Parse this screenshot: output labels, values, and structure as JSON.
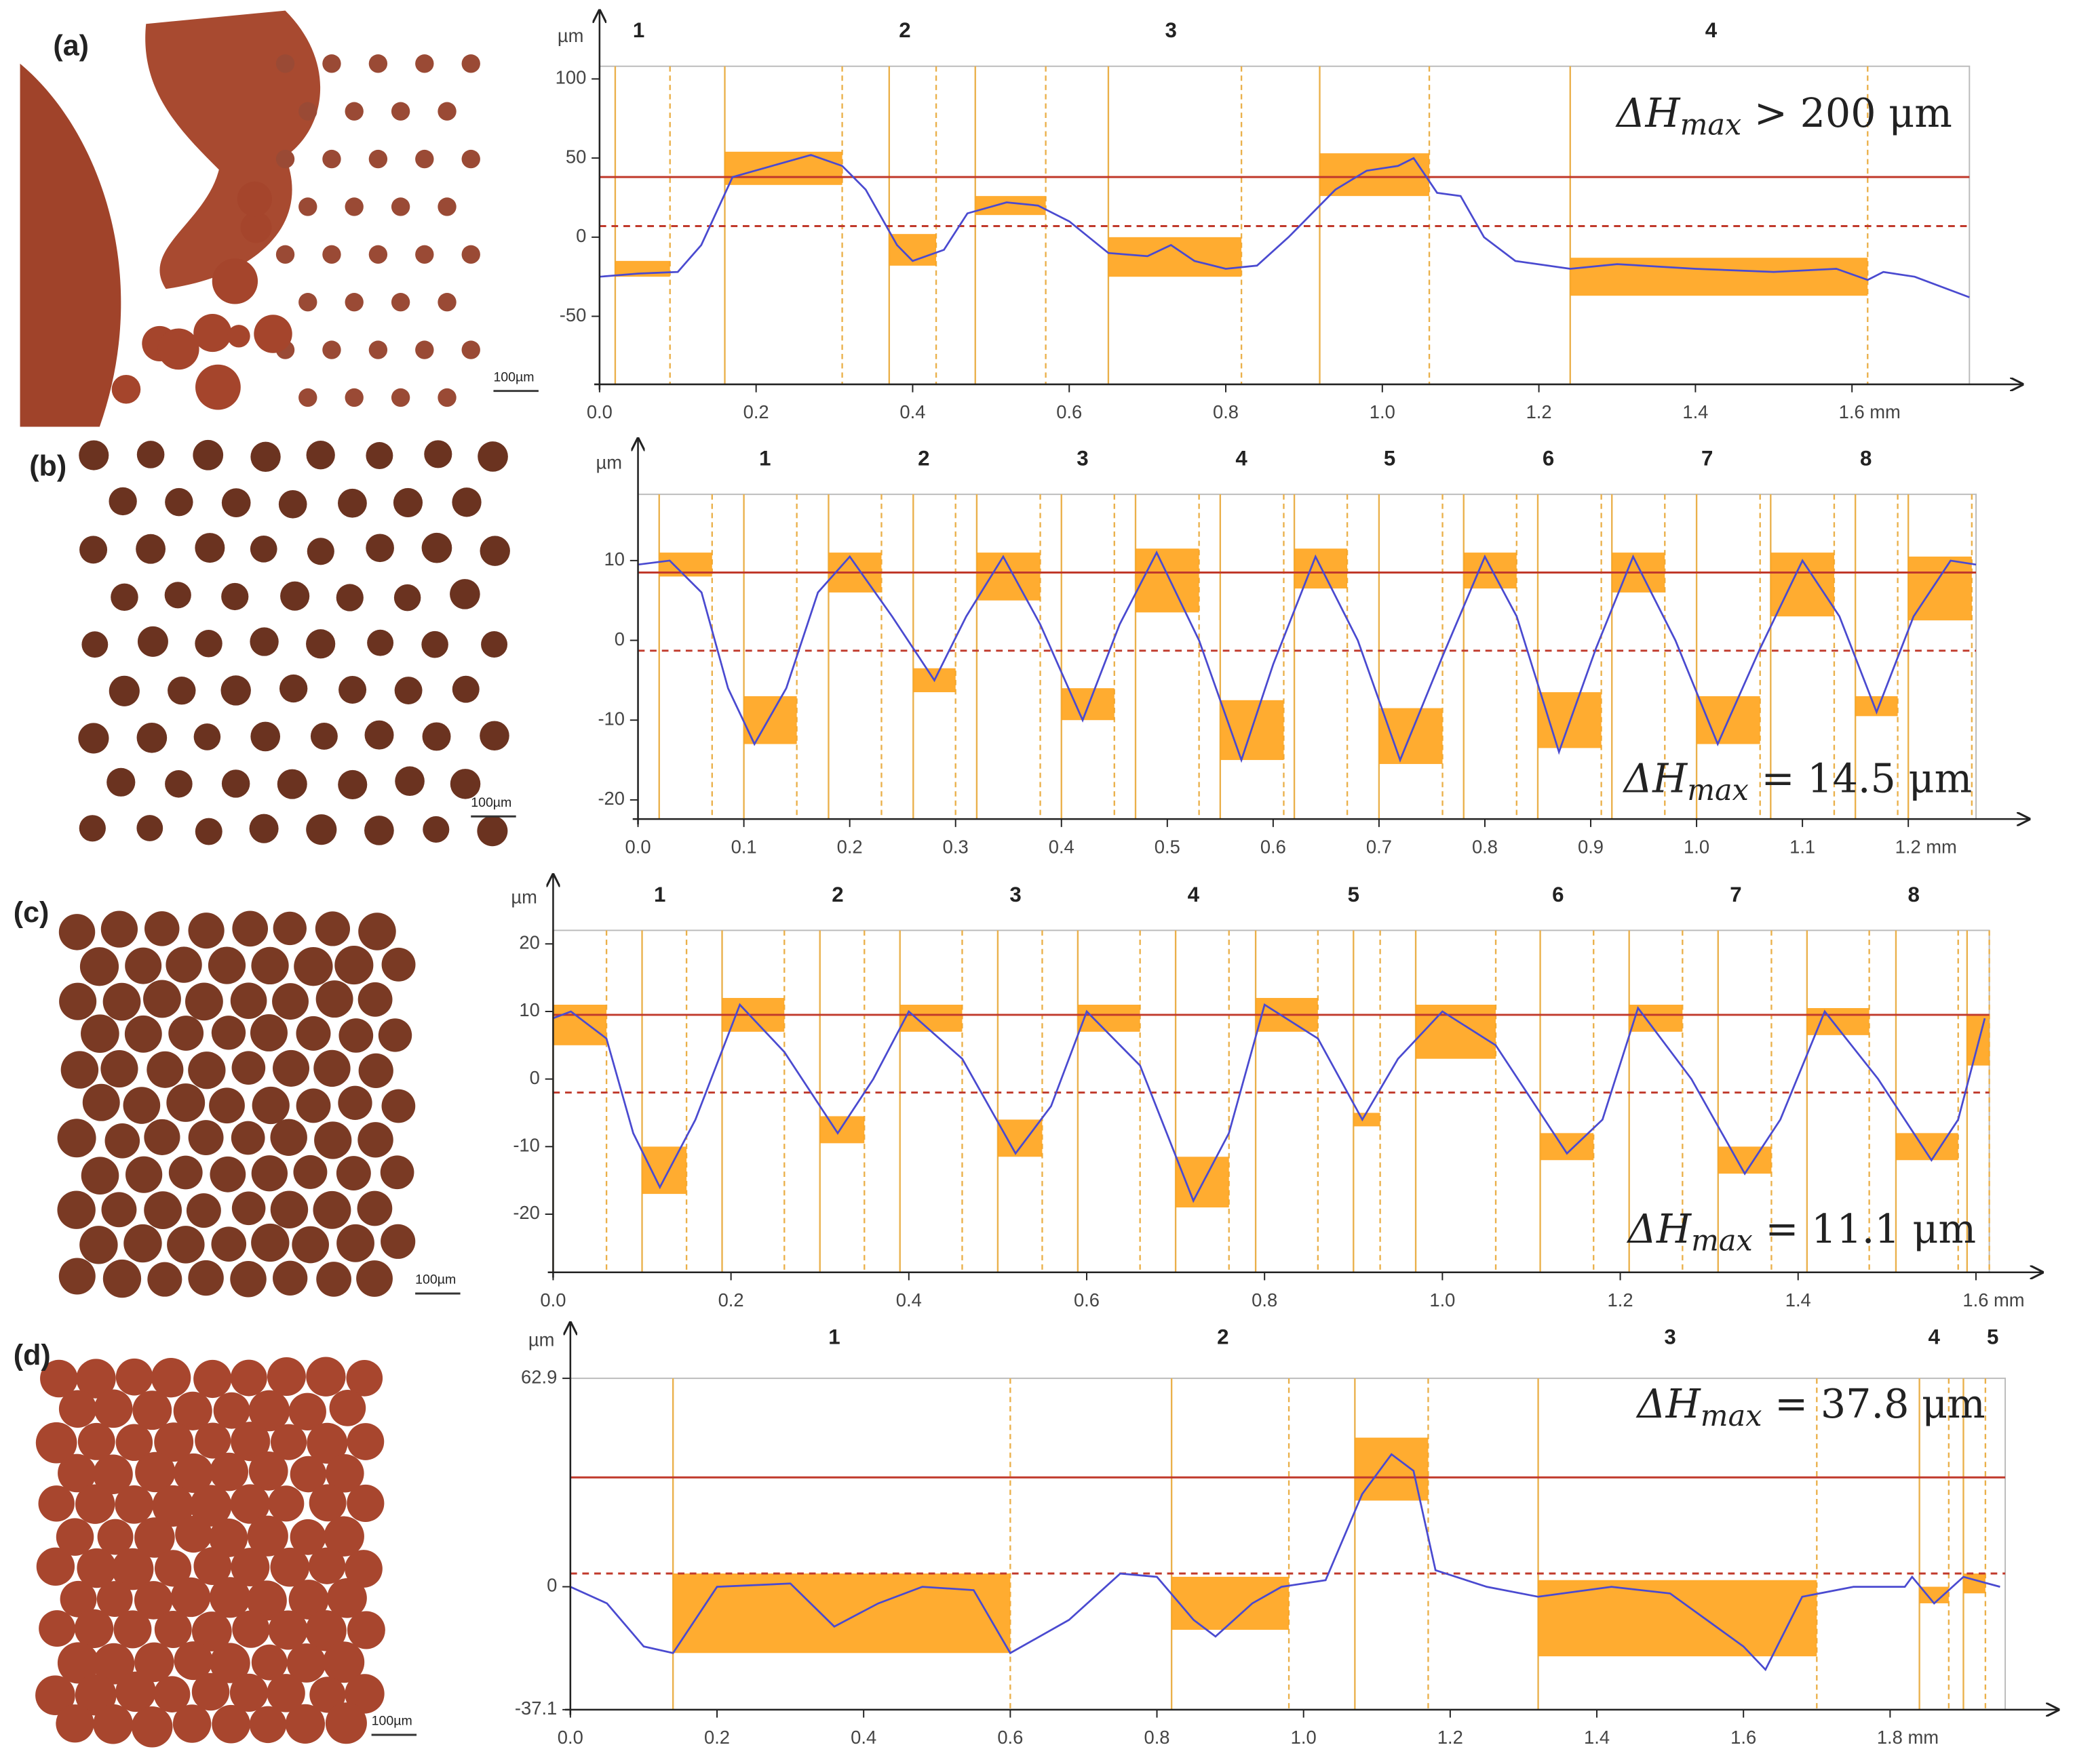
{
  "panels": [
    {
      "label": "(a)",
      "scale_bar": "100µm"
    },
    {
      "label": "(b)",
      "scale_bar": "100µm"
    },
    {
      "label": "(c)",
      "scale_bar": "100µm"
    },
    {
      "label": "(d)",
      "scale_bar": "100µm"
    }
  ],
  "chart_data": [
    {
      "type": "line",
      "y_label": "µm",
      "color": "#4a4ad0",
      "annotation": {
        "symbol": "ΔH",
        "subscript": "max",
        "rest": " > 200 μm"
      },
      "xlim": [
        0,
        1.75
      ],
      "ylim": [
        -93,
        108
      ],
      "xticks": [
        {
          "value": 0,
          "label": "0.0"
        },
        0.2,
        0.4,
        0.6,
        0.8,
        {
          "value": 1,
          "label": "1.0"
        },
        1.2,
        1.4,
        {
          "value": 1.6,
          "label": "1.6 mm"
        }
      ],
      "yticks": [
        100,
        50,
        0,
        -50
      ],
      "x": [
        0,
        0.05,
        0.1,
        0.13,
        0.17,
        0.22,
        0.27,
        0.31,
        0.34,
        0.38,
        0.4,
        0.44,
        0.47,
        0.52,
        0.56,
        0.6,
        0.65,
        0.7,
        0.73,
        0.76,
        0.8,
        0.84,
        0.88,
        0.94,
        0.98,
        1.02,
        1.04,
        1.07,
        1.1,
        1.13,
        1.17,
        1.24,
        1.3,
        1.4,
        1.5,
        1.58,
        1.62,
        1.64,
        1.68,
        1.75
      ],
      "values": [
        -25,
        -23,
        -22,
        -5,
        38,
        45,
        52,
        45,
        30,
        -5,
        -15,
        -8,
        15,
        22,
        20,
        10,
        -10,
        -12,
        -5,
        -15,
        -20,
        -18,
        0,
        30,
        42,
        45,
        50,
        28,
        26,
        0,
        -15,
        -20,
        -17,
        -20,
        -22,
        -20,
        -27,
        -22,
        -25,
        -38
      ],
      "boxes": [
        [
          0.02,
          0.09,
          -25,
          -15
        ],
        [
          0.16,
          0.31,
          33,
          54
        ],
        [
          0.37,
          0.43,
          -18,
          2
        ],
        [
          0.48,
          0.57,
          14,
          26
        ],
        [
          0.65,
          0.82,
          -25,
          0
        ],
        [
          0.92,
          1.06,
          26,
          53
        ],
        [
          1.24,
          1.62,
          -37,
          -13
        ]
      ],
      "ref_lines": [
        {
          "value": 38,
          "style": "solid"
        },
        {
          "value": 7,
          "style": "dashed"
        }
      ],
      "section_labels": [
        {
          "label": "1",
          "x": 0.05
        },
        {
          "label": "2",
          "x": 0.39
        },
        {
          "label": "3",
          "x": 0.73
        },
        {
          "label": "4",
          "x": 1.42
        }
      ]
    },
    {
      "type": "line",
      "y_label": "µm",
      "color": "#4a4ad0",
      "annotation": {
        "symbol": "ΔH",
        "subscript": "max",
        "rest": " = 14.5 μm"
      },
      "xlim": [
        0,
        1.264
      ],
      "ylim": [
        -22.4,
        18.3
      ],
      "xticks": [
        {
          "value": 0,
          "label": "0.0"
        },
        0.1,
        0.2,
        0.3,
        0.4,
        0.5,
        0.6,
        0.7,
        0.8,
        0.9,
        {
          "value": 1,
          "label": "1.0"
        },
        1.1,
        {
          "value": 1.2,
          "label": "1.2 mm"
        }
      ],
      "yticks": [
        10,
        0,
        -10,
        -20
      ],
      "x": [
        0,
        0.03,
        0.06,
        0.085,
        0.11,
        0.14,
        0.17,
        0.2,
        0.24,
        0.28,
        0.31,
        0.345,
        0.38,
        0.42,
        0.455,
        0.49,
        0.53,
        0.57,
        0.6,
        0.64,
        0.68,
        0.72,
        0.76,
        0.8,
        0.83,
        0.87,
        0.905,
        0.94,
        0.98,
        1.02,
        1.06,
        1.1,
        1.135,
        1.17,
        1.205,
        1.24,
        1.264
      ],
      "values": [
        9.5,
        10,
        6,
        -6,
        -13,
        -6,
        6,
        10.5,
        3,
        -5,
        3,
        10.5,
        2,
        -10,
        2,
        11,
        0,
        -15,
        -3,
        10.5,
        0,
        -15,
        -2,
        10.5,
        3,
        -14,
        -1,
        10.5,
        0,
        -13,
        -1,
        10,
        3,
        -9,
        3,
        10,
        9.5
      ],
      "boxes": [
        [
          0.02,
          0.07,
          8,
          11
        ],
        [
          0.1,
          0.15,
          -13,
          -7
        ],
        [
          0.18,
          0.23,
          6,
          11
        ],
        [
          0.26,
          0.3,
          -6.5,
          -3.5
        ],
        [
          0.32,
          0.38,
          5,
          11
        ],
        [
          0.4,
          0.45,
          -10,
          -6
        ],
        [
          0.47,
          0.53,
          3.5,
          11.5
        ],
        [
          0.55,
          0.61,
          -15,
          -7.5
        ],
        [
          0.62,
          0.67,
          6.5,
          11.5
        ],
        [
          0.7,
          0.76,
          -15.5,
          -8.5
        ],
        [
          0.78,
          0.83,
          6.5,
          11
        ],
        [
          0.85,
          0.91,
          -13.5,
          -6.5
        ],
        [
          0.92,
          0.97,
          6,
          11
        ],
        [
          1,
          1.06,
          -13,
          -7
        ],
        [
          1.07,
          1.13,
          3,
          11
        ],
        [
          1.15,
          1.19,
          -9.5,
          -7
        ],
        [
          1.2,
          1.26,
          2.5,
          10.5
        ]
      ],
      "ref_lines": [
        {
          "value": 8.5,
          "style": "solid"
        },
        {
          "value": -1.3,
          "style": "dashed"
        }
      ],
      "section_labels": [
        {
          "label": "1",
          "x": 0.12
        },
        {
          "label": "2",
          "x": 0.27
        },
        {
          "label": "3",
          "x": 0.42
        },
        {
          "label": "4",
          "x": 0.57
        },
        {
          "label": "5",
          "x": 0.71
        },
        {
          "label": "6",
          "x": 0.86
        },
        {
          "label": "7",
          "x": 1.01
        },
        {
          "label": "8",
          "x": 1.16
        }
      ]
    },
    {
      "type": "line",
      "y_label": "µm",
      "color": "#4a4ad0",
      "annotation": {
        "symbol": "ΔH",
        "subscript": "max",
        "rest": " = 11.1 μm"
      },
      "xlim": [
        0,
        1.615
      ],
      "ylim": [
        -28.6,
        22
      ],
      "xticks": [
        {
          "value": 0,
          "label": "0.0"
        },
        0.2,
        0.4,
        0.6,
        0.8,
        {
          "value": 1,
          "label": "1.0"
        },
        1.2,
        1.4,
        {
          "value": 1.6,
          "label": "1.6 mm"
        }
      ],
      "yticks": [
        20,
        10,
        0,
        -10,
        -20
      ],
      "x": [
        0,
        0.02,
        0.06,
        0.09,
        0.12,
        0.16,
        0.21,
        0.26,
        0.32,
        0.36,
        0.4,
        0.46,
        0.52,
        0.56,
        0.6,
        0.66,
        0.72,
        0.76,
        0.8,
        0.86,
        0.91,
        0.95,
        1,
        1.06,
        1.14,
        1.18,
        1.22,
        1.28,
        1.34,
        1.38,
        1.43,
        1.49,
        1.55,
        1.58,
        1.61
      ],
      "values": [
        9,
        10,
        6,
        -8,
        -16,
        -6,
        11,
        4,
        -8,
        0,
        10,
        3,
        -11,
        -4,
        10,
        2,
        -18,
        -8,
        11,
        6,
        -6,
        3,
        10,
        5,
        -11,
        -6,
        10.5,
        0,
        -14,
        -6,
        10,
        0,
        -12,
        -6,
        9
      ],
      "boxes": [
        [
          0,
          0.06,
          5,
          11
        ],
        [
          0.1,
          0.15,
          -17,
          -10
        ],
        [
          0.19,
          0.26,
          7,
          12
        ],
        [
          0.3,
          0.35,
          -9.5,
          -5.5
        ],
        [
          0.39,
          0.46,
          7,
          11
        ],
        [
          0.5,
          0.55,
          -11.5,
          -6
        ],
        [
          0.59,
          0.66,
          7,
          11
        ],
        [
          0.7,
          0.76,
          -19,
          -11.5
        ],
        [
          0.79,
          0.86,
          7,
          12
        ],
        [
          0.9,
          0.93,
          -7,
          -5
        ],
        [
          0.97,
          1.06,
          3,
          11
        ],
        [
          1.11,
          1.17,
          -12,
          -8
        ],
        [
          1.21,
          1.27,
          7,
          11
        ],
        [
          1.31,
          1.37,
          -14,
          -10
        ],
        [
          1.41,
          1.48,
          6.5,
          10.5
        ],
        [
          1.51,
          1.58,
          -12,
          -8
        ],
        [
          1.59,
          1.615,
          2,
          9.5
        ]
      ],
      "ref_lines": [
        {
          "value": 9.5,
          "style": "solid"
        },
        {
          "value": -2,
          "style": "dashed"
        }
      ],
      "section_labels": [
        {
          "label": "1",
          "x": 0.12
        },
        {
          "label": "2",
          "x": 0.32
        },
        {
          "label": "3",
          "x": 0.52
        },
        {
          "label": "4",
          "x": 0.72
        },
        {
          "label": "5",
          "x": 0.9
        },
        {
          "label": "6",
          "x": 1.13
        },
        {
          "label": "7",
          "x": 1.33
        },
        {
          "label": "8",
          "x": 1.53
        }
      ]
    },
    {
      "type": "line",
      "y_label": "µm",
      "color": "#4a4ad0",
      "annotation": {
        "symbol": "ΔH",
        "subscript": "max",
        "rest": " = 37.8 μm"
      },
      "xlim": [
        0,
        1.957
      ],
      "ylim": [
        -37.1,
        62.9
      ],
      "xticks": [
        {
          "value": 0,
          "label": "0.0"
        },
        0.2,
        0.4,
        0.6,
        0.8,
        {
          "value": 1,
          "label": "1.0"
        },
        1.2,
        1.4,
        1.6,
        {
          "value": 1.8,
          "label": "1.8 mm"
        }
      ],
      "yticks": [
        62.9,
        0,
        -37.1
      ],
      "x": [
        0,
        0.05,
        0.1,
        0.14,
        0.2,
        0.3,
        0.36,
        0.42,
        0.48,
        0.55,
        0.6,
        0.68,
        0.75,
        0.8,
        0.85,
        0.88,
        0.93,
        0.97,
        1.03,
        1.08,
        1.12,
        1.15,
        1.18,
        1.25,
        1.32,
        1.42,
        1.5,
        1.6,
        1.63,
        1.68,
        1.75,
        1.82,
        1.83,
        1.86,
        1.9,
        1.95
      ],
      "values": [
        0,
        -5,
        -18,
        -20,
        0,
        1,
        -12,
        -5,
        0,
        -1,
        -20,
        -10,
        4,
        3,
        -10,
        -15,
        -5,
        0,
        2,
        28,
        40,
        35,
        5,
        0,
        -3,
        0,
        -2,
        -18,
        -25,
        -3,
        0,
        0,
        3,
        -5,
        3,
        0
      ],
      "boxes": [
        [
          0.14,
          0.6,
          -20,
          4
        ],
        [
          0.82,
          0.98,
          -13,
          3
        ],
        [
          1.07,
          1.17,
          26,
          45
        ],
        [
          1.32,
          1.7,
          -21,
          2
        ],
        [
          1.84,
          1.88,
          -5,
          0
        ],
        [
          1.9,
          1.93,
          -2,
          4
        ]
      ],
      "ref_lines": [
        {
          "value": 33,
          "style": "solid"
        },
        {
          "value": 4,
          "style": "dashed"
        }
      ],
      "section_labels": [
        {
          "label": "1",
          "x": 0.36
        },
        {
          "label": "2",
          "x": 0.89
        },
        {
          "label": "3",
          "x": 1.5
        },
        {
          "label": "4",
          "x": 1.86
        },
        {
          "label": "5",
          "x": 1.94
        }
      ]
    }
  ]
}
